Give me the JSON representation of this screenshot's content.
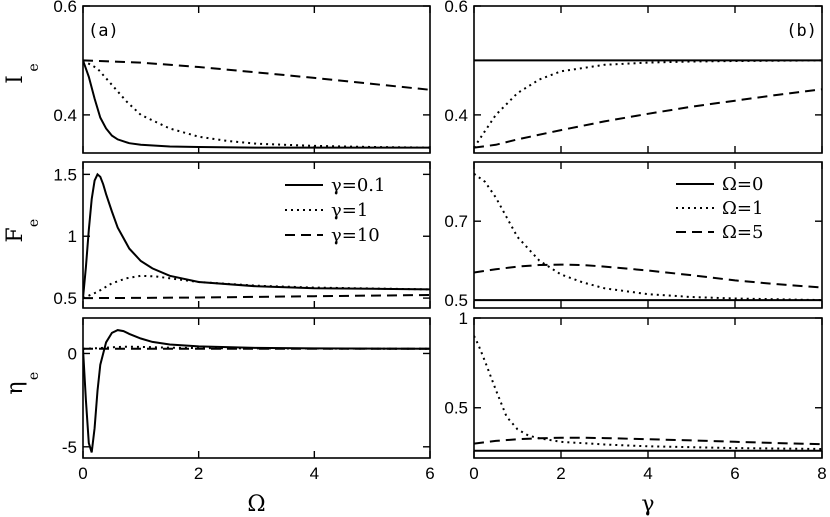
{
  "chart_data": {
    "type": "line",
    "panels": [
      {
        "id": "a-top",
        "tag": "(a)",
        "ylabel": "I",
        "ylabel_sub": "e",
        "xlim": [
          0,
          6
        ],
        "ylim": [
          0.33,
          0.6
        ],
        "xticks": [
          0,
          2,
          4,
          6
        ],
        "yticks": [
          0.4,
          0.6
        ],
        "ytick_labels": [
          "0.4",
          "0.6"
        ],
        "show_xticklabels": false,
        "xlabel": "",
        "legend": null,
        "series": [
          {
            "name": "γ=0.1",
            "dash": "solid",
            "x": [
              0,
              0.1,
              0.2,
              0.3,
              0.4,
              0.5,
              0.6,
              0.8,
              1.0,
              1.5,
              2.0,
              3.0,
              4.0,
              5.0,
              6.0
            ],
            "y": [
              0.5,
              0.47,
              0.43,
              0.395,
              0.375,
              0.362,
              0.355,
              0.348,
              0.345,
              0.342,
              0.341,
              0.34,
              0.34,
              0.34,
              0.34
            ]
          },
          {
            "name": "γ=1",
            "dash": "dot",
            "x": [
              0,
              0.25,
              0.5,
              0.75,
              1.0,
              1.5,
              2.0,
              2.5,
              3.0,
              4.0,
              5.0,
              6.0
            ],
            "y": [
              0.5,
              0.485,
              0.455,
              0.425,
              0.4,
              0.375,
              0.36,
              0.352,
              0.347,
              0.343,
              0.341,
              0.34
            ]
          },
          {
            "name": "γ=10",
            "dash": "dash",
            "x": [
              0,
              1,
              2,
              3,
              4,
              5,
              6
            ],
            "y": [
              0.5,
              0.496,
              0.488,
              0.478,
              0.468,
              0.457,
              0.446
            ]
          }
        ]
      },
      {
        "id": "b-top",
        "tag": "(b)",
        "ylabel": "",
        "ylabel_sub": "",
        "xlim": [
          0,
          8
        ],
        "ylim": [
          0.33,
          0.6
        ],
        "xticks": [
          0,
          2,
          4,
          6,
          8
        ],
        "yticks": [
          0.4,
          0.6
        ],
        "ytick_labels": [
          "0.4",
          "0.6"
        ],
        "show_xticklabels": false,
        "xlabel": "",
        "legend": null,
        "series": [
          {
            "name": "Ω=0",
            "dash": "solid",
            "x": [
              0,
              8
            ],
            "y": [
              0.5,
              0.5
            ]
          },
          {
            "name": "Ω=1",
            "dash": "dot",
            "x": [
              0,
              0.25,
              0.5,
              1.0,
              1.5,
              2.0,
              3.0,
              4.0,
              5.0,
              6.0,
              8.0
            ],
            "y": [
              0.34,
              0.37,
              0.4,
              0.44,
              0.465,
              0.48,
              0.492,
              0.496,
              0.498,
              0.499,
              0.5
            ]
          },
          {
            "name": "Ω=5",
            "dash": "dash",
            "x": [
              0,
              0.5,
              1.0,
              2.0,
              3.0,
              4.0,
              5.0,
              6.0,
              7.0,
              8.0
            ],
            "y": [
              0.34,
              0.345,
              0.355,
              0.372,
              0.388,
              0.402,
              0.415,
              0.426,
              0.437,
              0.447
            ]
          }
        ]
      },
      {
        "id": "a-mid",
        "tag": "",
        "ylabel": "F",
        "ylabel_sub": "e",
        "xlim": [
          0,
          6
        ],
        "ylim": [
          0.42,
          1.6
        ],
        "xticks": [
          0,
          2,
          4,
          6
        ],
        "yticks": [
          0.5,
          1.0,
          1.5
        ],
        "ytick_labels": [
          "0.5",
          "1",
          "1.5"
        ],
        "show_xticklabels": false,
        "xlabel": "",
        "legend": [
          "γ=0.1",
          "γ=1",
          "γ=10"
        ],
        "series": [
          {
            "name": "γ=0.1",
            "dash": "solid",
            "x": [
              0,
              0.05,
              0.1,
              0.15,
              0.2,
              0.25,
              0.3,
              0.35,
              0.4,
              0.5,
              0.6,
              0.8,
              1.0,
              1.2,
              1.5,
              2.0,
              3.0,
              4.0,
              5.0,
              6.0
            ],
            "y": [
              0.5,
              0.75,
              1.05,
              1.3,
              1.45,
              1.5,
              1.48,
              1.42,
              1.34,
              1.2,
              1.07,
              0.9,
              0.8,
              0.74,
              0.68,
              0.63,
              0.595,
              0.58,
              0.575,
              0.57
            ]
          },
          {
            "name": "γ=1",
            "dash": "dot",
            "x": [
              0,
              0.25,
              0.5,
              0.75,
              1.0,
              1.25,
              1.5,
              2.0,
              3.0,
              4.0,
              5.0,
              6.0
            ],
            "y": [
              0.5,
              0.55,
              0.62,
              0.66,
              0.68,
              0.675,
              0.66,
              0.63,
              0.6,
              0.585,
              0.578,
              0.57
            ]
          },
          {
            "name": "γ=10",
            "dash": "dash",
            "x": [
              0,
              1,
              2,
              3,
              4,
              5,
              6
            ],
            "y": [
              0.5,
              0.502,
              0.505,
              0.51,
              0.515,
              0.52,
              0.525
            ]
          }
        ]
      },
      {
        "id": "b-mid",
        "tag": "",
        "ylabel": "",
        "ylabel_sub": "",
        "xlim": [
          0,
          8
        ],
        "ylim": [
          0.48,
          0.85
        ],
        "xticks": [
          0,
          2,
          4,
          6,
          8
        ],
        "yticks": [
          0.5,
          0.7
        ],
        "ytick_labels": [
          "0.5",
          "0.7"
        ],
        "show_xticklabels": false,
        "xlabel": "",
        "legend": [
          "Ω=0",
          "Ω=1",
          "Ω=5"
        ],
        "series": [
          {
            "name": "Ω=0",
            "dash": "solid",
            "x": [
              0,
              8
            ],
            "y": [
              0.5,
              0.5
            ]
          },
          {
            "name": "Ω=1",
            "dash": "dot",
            "x": [
              0,
              0.25,
              0.5,
              0.75,
              1.0,
              1.5,
              2.0,
              2.5,
              3.0,
              4.0,
              5.0,
              6.0,
              8.0
            ],
            "y": [
              0.82,
              0.8,
              0.76,
              0.71,
              0.66,
              0.6,
              0.565,
              0.545,
              0.53,
              0.515,
              0.508,
              0.504,
              0.5
            ]
          },
          {
            "name": "Ω=5",
            "dash": "dash",
            "x": [
              0,
              0.5,
              1.0,
              1.5,
              2.0,
              2.5,
              3.0,
              4.0,
              5.0,
              6.0,
              7.0,
              8.0
            ],
            "y": [
              0.57,
              0.578,
              0.585,
              0.589,
              0.59,
              0.589,
              0.585,
              0.575,
              0.563,
              0.55,
              0.54,
              0.532
            ]
          }
        ]
      },
      {
        "id": "a-bot",
        "tag": "",
        "ylabel": "η",
        "ylabel_sub": "e",
        "xlim": [
          0,
          6
        ],
        "ylim": [
          -5.6,
          1.9
        ],
        "xticks": [
          0,
          2,
          4,
          6
        ],
        "yticks": [
          -5,
          0
        ],
        "ytick_labels": [
          "-5",
          "0"
        ],
        "show_xticklabels": true,
        "xlabel": "Ω",
        "legend": null,
        "series": [
          {
            "name": "γ=0.1",
            "dash": "solid",
            "x": [
              0,
              0.05,
              0.1,
              0.15,
              0.2,
              0.25,
              0.3,
              0.4,
              0.5,
              0.6,
              0.7,
              0.8,
              1.0,
              1.2,
              1.5,
              2.0,
              3.0,
              4.0,
              6.0
            ],
            "y": [
              0.25,
              -2.5,
              -4.8,
              -5.3,
              -4.0,
              -2.0,
              -0.6,
              0.6,
              1.1,
              1.25,
              1.2,
              1.05,
              0.8,
              0.62,
              0.48,
              0.38,
              0.3,
              0.27,
              0.25
            ]
          },
          {
            "name": "γ=1",
            "dash": "dot",
            "x": [
              0,
              0.25,
              0.5,
              0.75,
              1.0,
              1.5,
              2.0,
              3.0,
              6.0
            ],
            "y": [
              0.25,
              0.28,
              0.33,
              0.36,
              0.35,
              0.31,
              0.29,
              0.27,
              0.25
            ]
          },
          {
            "name": "γ=10",
            "dash": "dash",
            "x": [
              0,
              6
            ],
            "y": [
              0.25,
              0.25
            ]
          }
        ]
      },
      {
        "id": "b-bot",
        "tag": "",
        "ylabel": "",
        "ylabel_sub": "",
        "xlim": [
          0,
          8
        ],
        "ylim": [
          0.22,
          1.0
        ],
        "xticks": [
          0,
          2,
          4,
          6,
          8
        ],
        "yticks": [
          0.5,
          1.0
        ],
        "ytick_labels": [
          "0.5",
          "1"
        ],
        "show_xticklabels": true,
        "xlabel": "γ",
        "legend": null,
        "series": [
          {
            "name": "Ω=0",
            "dash": "solid",
            "x": [
              0,
              8
            ],
            "y": [
              0.26,
              0.26
            ]
          },
          {
            "name": "Ω=1",
            "dash": "dot",
            "x": [
              0,
              0.1,
              0.25,
              0.5,
              0.75,
              1.0,
              1.25,
              1.5,
              2.0,
              3.0,
              4.0,
              6.0,
              8.0
            ],
            "y": [
              0.9,
              0.85,
              0.76,
              0.6,
              0.45,
              0.38,
              0.345,
              0.33,
              0.31,
              0.295,
              0.285,
              0.275,
              0.27
            ]
          },
          {
            "name": "Ω=5",
            "dash": "dash",
            "x": [
              0,
              0.5,
              1.0,
              1.5,
              2.0,
              2.5,
              3.0,
              4.0,
              5.0,
              6.0,
              7.0,
              8.0
            ],
            "y": [
              0.3,
              0.315,
              0.325,
              0.33,
              0.333,
              0.333,
              0.331,
              0.325,
              0.318,
              0.31,
              0.303,
              0.297
            ]
          }
        ]
      }
    ]
  }
}
